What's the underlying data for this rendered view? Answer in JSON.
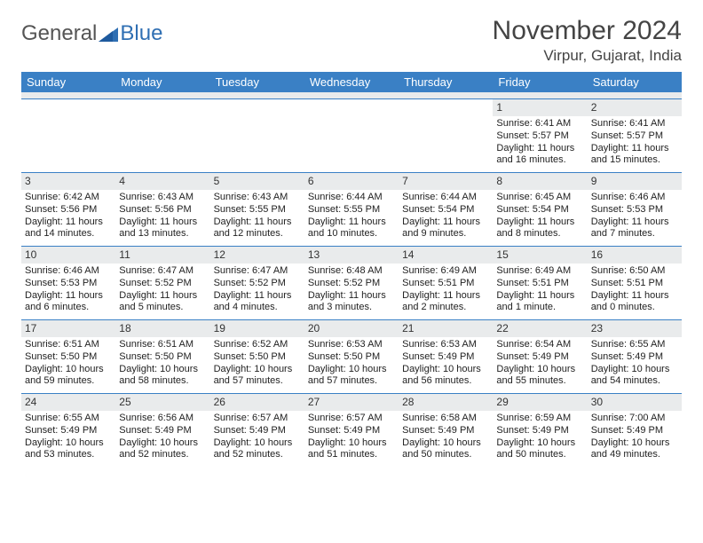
{
  "logo": {
    "text1": "General",
    "text2": "Blue"
  },
  "title": "November 2024",
  "location": "Virpur, Gujarat, India",
  "colors": {
    "header_bg": "#3a80c5",
    "daynum_bg": "#e9ebec",
    "text": "#222"
  },
  "day_headers": [
    "Sunday",
    "Monday",
    "Tuesday",
    "Wednesday",
    "Thursday",
    "Friday",
    "Saturday"
  ],
  "weeks": [
    [
      {
        "empty": true
      },
      {
        "empty": true
      },
      {
        "empty": true
      },
      {
        "empty": true
      },
      {
        "empty": true
      },
      {
        "day": "1",
        "sunrise": "Sunrise: 6:41 AM",
        "sunset": "Sunset: 5:57 PM",
        "daylight1": "Daylight: 11 hours",
        "daylight2": "and 16 minutes."
      },
      {
        "day": "2",
        "sunrise": "Sunrise: 6:41 AM",
        "sunset": "Sunset: 5:57 PM",
        "daylight1": "Daylight: 11 hours",
        "daylight2": "and 15 minutes."
      }
    ],
    [
      {
        "day": "3",
        "sunrise": "Sunrise: 6:42 AM",
        "sunset": "Sunset: 5:56 PM",
        "daylight1": "Daylight: 11 hours",
        "daylight2": "and 14 minutes."
      },
      {
        "day": "4",
        "sunrise": "Sunrise: 6:43 AM",
        "sunset": "Sunset: 5:56 PM",
        "daylight1": "Daylight: 11 hours",
        "daylight2": "and 13 minutes."
      },
      {
        "day": "5",
        "sunrise": "Sunrise: 6:43 AM",
        "sunset": "Sunset: 5:55 PM",
        "daylight1": "Daylight: 11 hours",
        "daylight2": "and 12 minutes."
      },
      {
        "day": "6",
        "sunrise": "Sunrise: 6:44 AM",
        "sunset": "Sunset: 5:55 PM",
        "daylight1": "Daylight: 11 hours",
        "daylight2": "and 10 minutes."
      },
      {
        "day": "7",
        "sunrise": "Sunrise: 6:44 AM",
        "sunset": "Sunset: 5:54 PM",
        "daylight1": "Daylight: 11 hours",
        "daylight2": "and 9 minutes."
      },
      {
        "day": "8",
        "sunrise": "Sunrise: 6:45 AM",
        "sunset": "Sunset: 5:54 PM",
        "daylight1": "Daylight: 11 hours",
        "daylight2": "and 8 minutes."
      },
      {
        "day": "9",
        "sunrise": "Sunrise: 6:46 AM",
        "sunset": "Sunset: 5:53 PM",
        "daylight1": "Daylight: 11 hours",
        "daylight2": "and 7 minutes."
      }
    ],
    [
      {
        "day": "10",
        "sunrise": "Sunrise: 6:46 AM",
        "sunset": "Sunset: 5:53 PM",
        "daylight1": "Daylight: 11 hours",
        "daylight2": "and 6 minutes."
      },
      {
        "day": "11",
        "sunrise": "Sunrise: 6:47 AM",
        "sunset": "Sunset: 5:52 PM",
        "daylight1": "Daylight: 11 hours",
        "daylight2": "and 5 minutes."
      },
      {
        "day": "12",
        "sunrise": "Sunrise: 6:47 AM",
        "sunset": "Sunset: 5:52 PM",
        "daylight1": "Daylight: 11 hours",
        "daylight2": "and 4 minutes."
      },
      {
        "day": "13",
        "sunrise": "Sunrise: 6:48 AM",
        "sunset": "Sunset: 5:52 PM",
        "daylight1": "Daylight: 11 hours",
        "daylight2": "and 3 minutes."
      },
      {
        "day": "14",
        "sunrise": "Sunrise: 6:49 AM",
        "sunset": "Sunset: 5:51 PM",
        "daylight1": "Daylight: 11 hours",
        "daylight2": "and 2 minutes."
      },
      {
        "day": "15",
        "sunrise": "Sunrise: 6:49 AM",
        "sunset": "Sunset: 5:51 PM",
        "daylight1": "Daylight: 11 hours",
        "daylight2": "and 1 minute."
      },
      {
        "day": "16",
        "sunrise": "Sunrise: 6:50 AM",
        "sunset": "Sunset: 5:51 PM",
        "daylight1": "Daylight: 11 hours",
        "daylight2": "and 0 minutes."
      }
    ],
    [
      {
        "day": "17",
        "sunrise": "Sunrise: 6:51 AM",
        "sunset": "Sunset: 5:50 PM",
        "daylight1": "Daylight: 10 hours",
        "daylight2": "and 59 minutes."
      },
      {
        "day": "18",
        "sunrise": "Sunrise: 6:51 AM",
        "sunset": "Sunset: 5:50 PM",
        "daylight1": "Daylight: 10 hours",
        "daylight2": "and 58 minutes."
      },
      {
        "day": "19",
        "sunrise": "Sunrise: 6:52 AM",
        "sunset": "Sunset: 5:50 PM",
        "daylight1": "Daylight: 10 hours",
        "daylight2": "and 57 minutes."
      },
      {
        "day": "20",
        "sunrise": "Sunrise: 6:53 AM",
        "sunset": "Sunset: 5:50 PM",
        "daylight1": "Daylight: 10 hours",
        "daylight2": "and 57 minutes."
      },
      {
        "day": "21",
        "sunrise": "Sunrise: 6:53 AM",
        "sunset": "Sunset: 5:49 PM",
        "daylight1": "Daylight: 10 hours",
        "daylight2": "and 56 minutes."
      },
      {
        "day": "22",
        "sunrise": "Sunrise: 6:54 AM",
        "sunset": "Sunset: 5:49 PM",
        "daylight1": "Daylight: 10 hours",
        "daylight2": "and 55 minutes."
      },
      {
        "day": "23",
        "sunrise": "Sunrise: 6:55 AM",
        "sunset": "Sunset: 5:49 PM",
        "daylight1": "Daylight: 10 hours",
        "daylight2": "and 54 minutes."
      }
    ],
    [
      {
        "day": "24",
        "sunrise": "Sunrise: 6:55 AM",
        "sunset": "Sunset: 5:49 PM",
        "daylight1": "Daylight: 10 hours",
        "daylight2": "and 53 minutes."
      },
      {
        "day": "25",
        "sunrise": "Sunrise: 6:56 AM",
        "sunset": "Sunset: 5:49 PM",
        "daylight1": "Daylight: 10 hours",
        "daylight2": "and 52 minutes."
      },
      {
        "day": "26",
        "sunrise": "Sunrise: 6:57 AM",
        "sunset": "Sunset: 5:49 PM",
        "daylight1": "Daylight: 10 hours",
        "daylight2": "and 52 minutes."
      },
      {
        "day": "27",
        "sunrise": "Sunrise: 6:57 AM",
        "sunset": "Sunset: 5:49 PM",
        "daylight1": "Daylight: 10 hours",
        "daylight2": "and 51 minutes."
      },
      {
        "day": "28",
        "sunrise": "Sunrise: 6:58 AM",
        "sunset": "Sunset: 5:49 PM",
        "daylight1": "Daylight: 10 hours",
        "daylight2": "and 50 minutes."
      },
      {
        "day": "29",
        "sunrise": "Sunrise: 6:59 AM",
        "sunset": "Sunset: 5:49 PM",
        "daylight1": "Daylight: 10 hours",
        "daylight2": "and 50 minutes."
      },
      {
        "day": "30",
        "sunrise": "Sunrise: 7:00 AM",
        "sunset": "Sunset: 5:49 PM",
        "daylight1": "Daylight: 10 hours",
        "daylight2": "and 49 minutes."
      }
    ]
  ]
}
